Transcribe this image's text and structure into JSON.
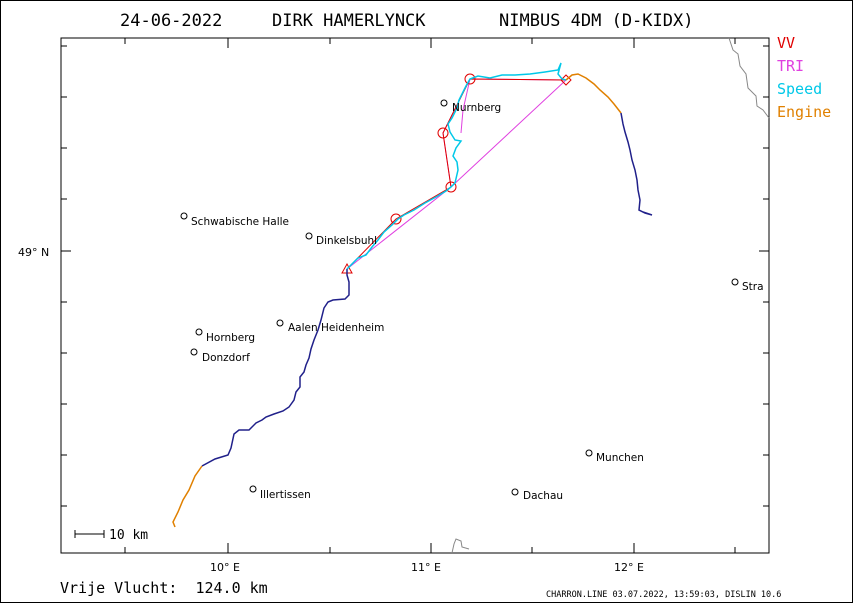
{
  "title": {
    "date": "24-06-2022",
    "pilot": "DIRK HAMERLYNCK",
    "glider": "NIMBUS 4DM (D-KIDX)"
  },
  "legend": [
    {
      "label": "VV",
      "color": "#e00000"
    },
    {
      "label": "TRI",
      "color": "#e040e0"
    },
    {
      "label": "Speed",
      "color": "#00c8e8"
    },
    {
      "label": "Engine",
      "color": "#e08000"
    }
  ],
  "axes": {
    "lat_label": "49° N",
    "lon_labels": [
      "10° E",
      "11° E",
      "12° E"
    ]
  },
  "scale_bar": {
    "label": "10 km"
  },
  "towns": [
    {
      "name": "Nurnberg",
      "icon": "town-marker-icon"
    },
    {
      "name": "Schwabische Halle",
      "icon": "town-marker-icon"
    },
    {
      "name": "Dinkelsbuhl",
      "icon": "town-marker-icon"
    },
    {
      "name": "Stra",
      "icon": "town-marker-icon"
    },
    {
      "name": "Aalen Heidenheim",
      "icon": "town-marker-icon"
    },
    {
      "name": "Hornberg",
      "icon": "town-marker-icon"
    },
    {
      "name": "Donzdorf",
      "icon": "town-marker-icon"
    },
    {
      "name": "Munchen",
      "icon": "town-marker-icon"
    },
    {
      "name": "Illertissen",
      "icon": "town-marker-icon"
    },
    {
      "name": "Dachau",
      "icon": "town-marker-icon"
    }
  ],
  "footer": {
    "distance": "Vrije Vlucht:  124.0 km",
    "credit": "CHARRON.LINE 03.07.2022, 13:59:03, DISLIN 10.6"
  }
}
